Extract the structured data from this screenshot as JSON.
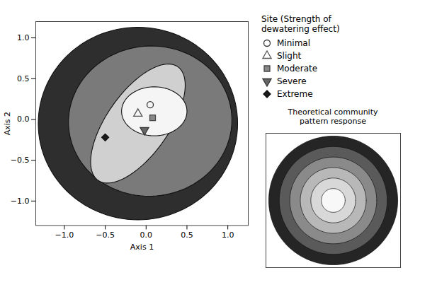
{
  "chart_data": [
    {
      "type": "scatter",
      "xlabel": "Axis 1",
      "ylabel": "Axis 2",
      "xlim": [
        -1.35,
        1.25
      ],
      "ylim": [
        -1.3,
        1.2
      ],
      "xticks": [
        {
          "value": -1.0,
          "label": "−1.0"
        },
        {
          "value": -0.5,
          "label": "−0.5"
        },
        {
          "value": 0.0,
          "label": "0.0"
        },
        {
          "value": 0.5,
          "label": "0.5"
        },
        {
          "value": 1.0,
          "label": "1.0"
        }
      ],
      "yticks": [
        {
          "value": -1.0,
          "label": "−1.0"
        },
        {
          "value": -0.5,
          "label": "−0.5"
        },
        {
          "value": 0.0,
          "label": "0.0"
        },
        {
          "value": 0.5,
          "label": "0.5"
        },
        {
          "value": 1.0,
          "label": "1.0"
        }
      ],
      "ellipses": [
        {
          "cx": -0.1,
          "cy": -0.05,
          "rx": 1.22,
          "ry": 1.18,
          "angle": 0,
          "color": "#2e2e2e"
        },
        {
          "cx": 0.05,
          "cy": -0.02,
          "rx": 1.0,
          "ry": 0.92,
          "angle": 5,
          "color": "#7a7a7a"
        },
        {
          "cx": -0.1,
          "cy": -0.05,
          "rx": 0.38,
          "ry": 0.85,
          "angle": -35,
          "color": "#d0d0d0"
        },
        {
          "cx": 0.1,
          "cy": 0.1,
          "rx": 0.4,
          "ry": 0.3,
          "angle": 0,
          "color": "#f5f5f5"
        }
      ],
      "legend_title": "Site (Strength of\ndewatering effect)",
      "series": [
        {
          "name": "Minimal",
          "marker": "circle",
          "color": "none",
          "edge_color": "#333333",
          "x": [
            0.05
          ],
          "y": [
            0.18
          ]
        },
        {
          "name": "Slight",
          "marker": "triangle-up",
          "color": "none",
          "edge_color": "#555555",
          "x": [
            -0.1
          ],
          "y": [
            0.07
          ]
        },
        {
          "name": "Moderate",
          "marker": "square",
          "color": "#888888",
          "edge_color": "#444444",
          "x": [
            0.08
          ],
          "y": [
            0.02
          ]
        },
        {
          "name": "Severe",
          "marker": "triangle-down",
          "color": "#666666",
          "edge_color": "#333333",
          "x": [
            -0.02
          ],
          "y": [
            -0.13
          ]
        },
        {
          "name": "Extreme",
          "marker": "diamond",
          "color": "#1a1a1a",
          "edge_color": "#111111",
          "x": [
            -0.5
          ],
          "y": [
            -0.22
          ]
        }
      ]
    },
    {
      "type": "concentric",
      "title": "Theoretical community\npattern response",
      "xlim": [
        0.02,
        0.98
      ],
      "ylim": [
        0.02,
        0.98
      ],
      "tick_labels": false,
      "center": [
        0.5,
        0.5
      ],
      "circles": [
        {
          "r": 0.46,
          "color": "#252525"
        },
        {
          "r": 0.385,
          "color": "#5a5a5a"
        },
        {
          "r": 0.31,
          "color": "#8a8a8a"
        },
        {
          "r": 0.235,
          "color": "#b8b8b8"
        },
        {
          "r": 0.16,
          "color": "#d8d8d8"
        },
        {
          "r": 0.085,
          "color": "#f8f8f8"
        }
      ]
    }
  ]
}
